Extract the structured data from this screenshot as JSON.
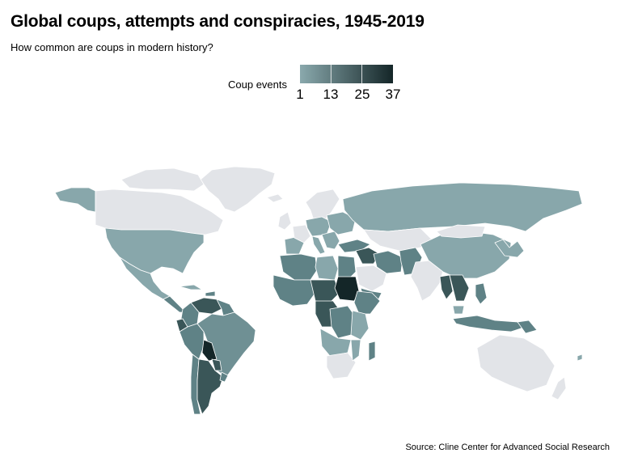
{
  "title": "Global coups, attempts and conspiracies, 1945-2019",
  "subtitle": "How common are coups in modern history?",
  "legend": {
    "title": "Coup events",
    "ticks": [
      "1",
      "13",
      "25",
      "37"
    ],
    "min": 1,
    "max": 37,
    "color_low": "#8aa9ad",
    "color_high": "#142628"
  },
  "colors": {
    "no_data": "#e2e4e8",
    "low": "#88a7ab",
    "mid": "#5f8286",
    "high": "#3a5658",
    "max": "#142628",
    "border": "#ffffff"
  },
  "source": "Source: Cline Center for Advanced Social Research"
}
